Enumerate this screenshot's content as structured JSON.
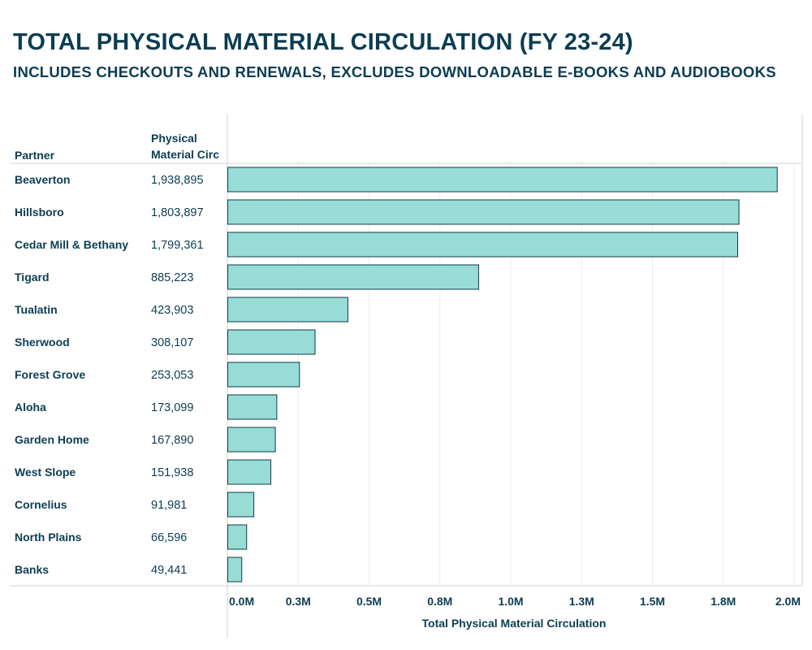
{
  "title": "TOTAL PHYSICAL MATERIAL CIRCULATION (FY 23-24)",
  "subtitle": "INCLUDES CHECKOUTS AND RENEWALS, EXCLUDES DOWNLOADABLE E-BOOKS AND AUDIOBOOKS",
  "chart_data": {
    "type": "bar",
    "orientation": "horizontal",
    "column_headers": {
      "partner": "Partner",
      "value": "Physical Material Circ"
    },
    "categories": [
      "Beaverton",
      "Hillsboro",
      "Cedar Mill & Bethany",
      "Tigard",
      "Tualatin",
      "Sherwood",
      "Forest Grove",
      "Aloha",
      "Garden Home",
      "West Slope",
      "Cornelius",
      "North Plains",
      "Banks"
    ],
    "values": [
      1938895,
      1803897,
      1799361,
      885223,
      423903,
      308107,
      253053,
      173099,
      167890,
      151938,
      91981,
      66596,
      49441
    ],
    "value_labels": [
      "1,938,895",
      "1,803,897",
      "1,799,361",
      "885,223",
      "423,903",
      "308,107",
      "253,053",
      "173,099",
      "167,890",
      "151,938",
      "91,981",
      "66,596",
      "49,441"
    ],
    "xlabel": "Total Physical Material Circulation",
    "xlim": [
      0,
      2000000
    ],
    "xticks": [
      0,
      250000,
      500000,
      750000,
      1000000,
      1250000,
      1500000,
      1750000,
      2000000
    ],
    "xtick_labels": [
      "0.0M",
      "0.3M",
      "0.5M",
      "0.8M",
      "1.0M",
      "1.3M",
      "1.5M",
      "1.8M",
      "2.0M"
    ],
    "grid": true,
    "colors": {
      "bar_fill": "#98dcd6",
      "bar_stroke": "#0f3b4a",
      "text": "#0b3d53"
    }
  }
}
